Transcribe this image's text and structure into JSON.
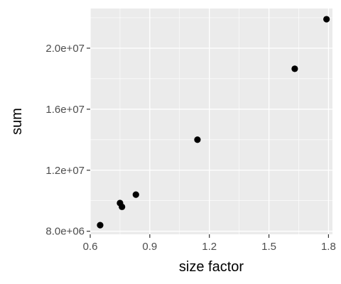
{
  "chart_data": {
    "type": "scatter",
    "xlabel": "size factor",
    "ylabel": "sum",
    "xlim": [
      0.6,
      1.82
    ],
    "ylim": [
      7800000,
      22600000
    ],
    "x_ticks": [
      0.6,
      0.9,
      1.2,
      1.5,
      1.8
    ],
    "x_tick_labels": [
      "0.6",
      "0.9",
      "1.2",
      "1.5",
      "1.8"
    ],
    "y_ticks": [
      8000000,
      12000000,
      16000000,
      20000000
    ],
    "y_tick_labels": [
      "8.0e+06",
      "1.2e+07",
      "1.6e+07",
      "2.0e+07"
    ],
    "grid": true,
    "points": [
      {
        "x": 0.65,
        "y": 8400000
      },
      {
        "x": 0.75,
        "y": 9850000
      },
      {
        "x": 0.76,
        "y": 9600000
      },
      {
        "x": 0.83,
        "y": 10400000
      },
      {
        "x": 1.14,
        "y": 14000000
      },
      {
        "x": 1.63,
        "y": 18650000
      },
      {
        "x": 1.79,
        "y": 21900000
      }
    ],
    "colors": {
      "panel": "#ebebeb",
      "grid": "#ffffff",
      "point": "#000000",
      "tick": "#333333"
    }
  }
}
